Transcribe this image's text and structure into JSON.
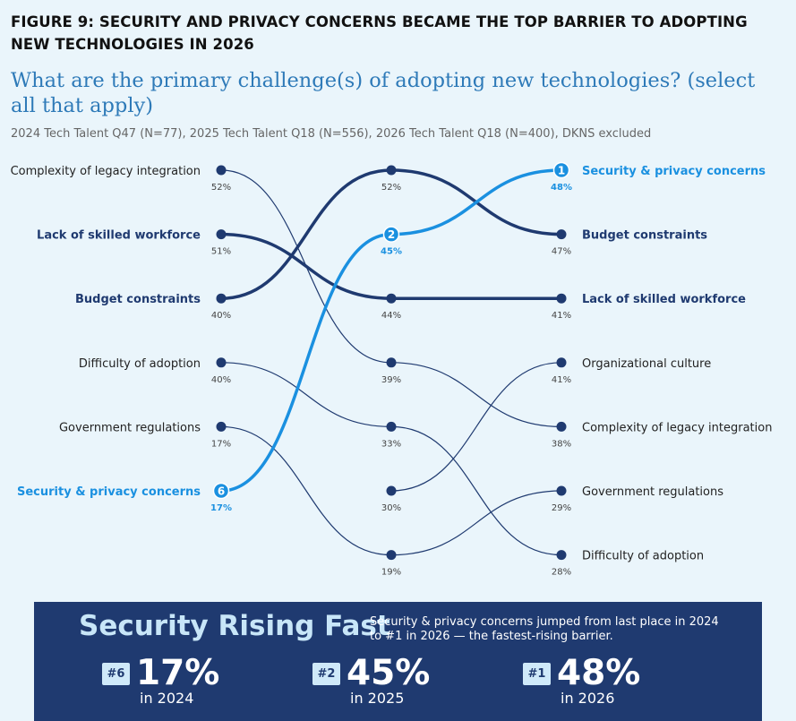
{
  "figure_title": "FIGURE 9: SECURITY AND PRIVACY CONCERNS BECAME THE TOP BARRIER TO ADOPTING NEW TECHNOLOGIES IN 2026",
  "question": "What are the primary challenge(s) of adopting new technologies? (select all that apply)",
  "source": "2024 Tech Talent Q47 (N=77), 2025 Tech Talent Q18 (N=556), 2026 Tech Talent Q18 (N=400), DKNS excluded",
  "colors": {
    "dark": "#1f3a70",
    "highlight": "#1a90e0",
    "background": "#eaf5fb"
  },
  "chart_data": {
    "type": "line",
    "subtype": "bump",
    "x": [
      "2024",
      "2025",
      "2026"
    ],
    "series": [
      {
        "name": "Security & privacy concerns",
        "values": [
          17,
          45,
          48
        ],
        "ranks": [
          6,
          2,
          1
        ],
        "highlight": true
      },
      {
        "name": "Budget constraints",
        "values": [
          40,
          52,
          47
        ],
        "ranks": [
          3,
          1,
          2
        ],
        "emphasis": true
      },
      {
        "name": "Lack of skilled workforce",
        "values": [
          51,
          44,
          41
        ],
        "ranks": [
          2,
          3,
          3
        ],
        "emphasis": true
      },
      {
        "name": "Organizational culture",
        "values": [
          null,
          30,
          41
        ],
        "ranks": [
          null,
          6,
          4
        ]
      },
      {
        "name": "Complexity of legacy integration",
        "values": [
          52,
          39,
          38
        ],
        "ranks": [
          1,
          4,
          5
        ]
      },
      {
        "name": "Government regulations",
        "values": [
          17,
          19,
          29
        ],
        "ranks": [
          5,
          7,
          6
        ]
      },
      {
        "name": "Difficulty of adoption",
        "values": [
          40,
          33,
          28
        ],
        "ranks": [
          4,
          5,
          7
        ]
      }
    ],
    "left_labels": [
      "Complexity of legacy integration",
      "Lack of skilled workforce",
      "Budget constraints",
      "Difficulty of adoption",
      "Government regulations",
      "Security & privacy concerns"
    ],
    "right_labels": [
      "Security & privacy concerns",
      "Budget constraints",
      "Lack of skilled workforce",
      "Organizational culture",
      "Complexity of legacy integration",
      "Government regulations",
      "Difficulty of adoption"
    ]
  },
  "panel": {
    "heading": "Security Rising Fast",
    "description": "Security & privacy concerns jumped from last place in 2024 to #1 in 2026 — the fastest-rising barrier.",
    "stats": [
      {
        "badge": "#6",
        "value": "17%",
        "when": "in 2024"
      },
      {
        "badge": "#2",
        "value": "45%",
        "when": "in 2025"
      },
      {
        "badge": "#1",
        "value": "48%",
        "when": "in 2026"
      }
    ]
  }
}
